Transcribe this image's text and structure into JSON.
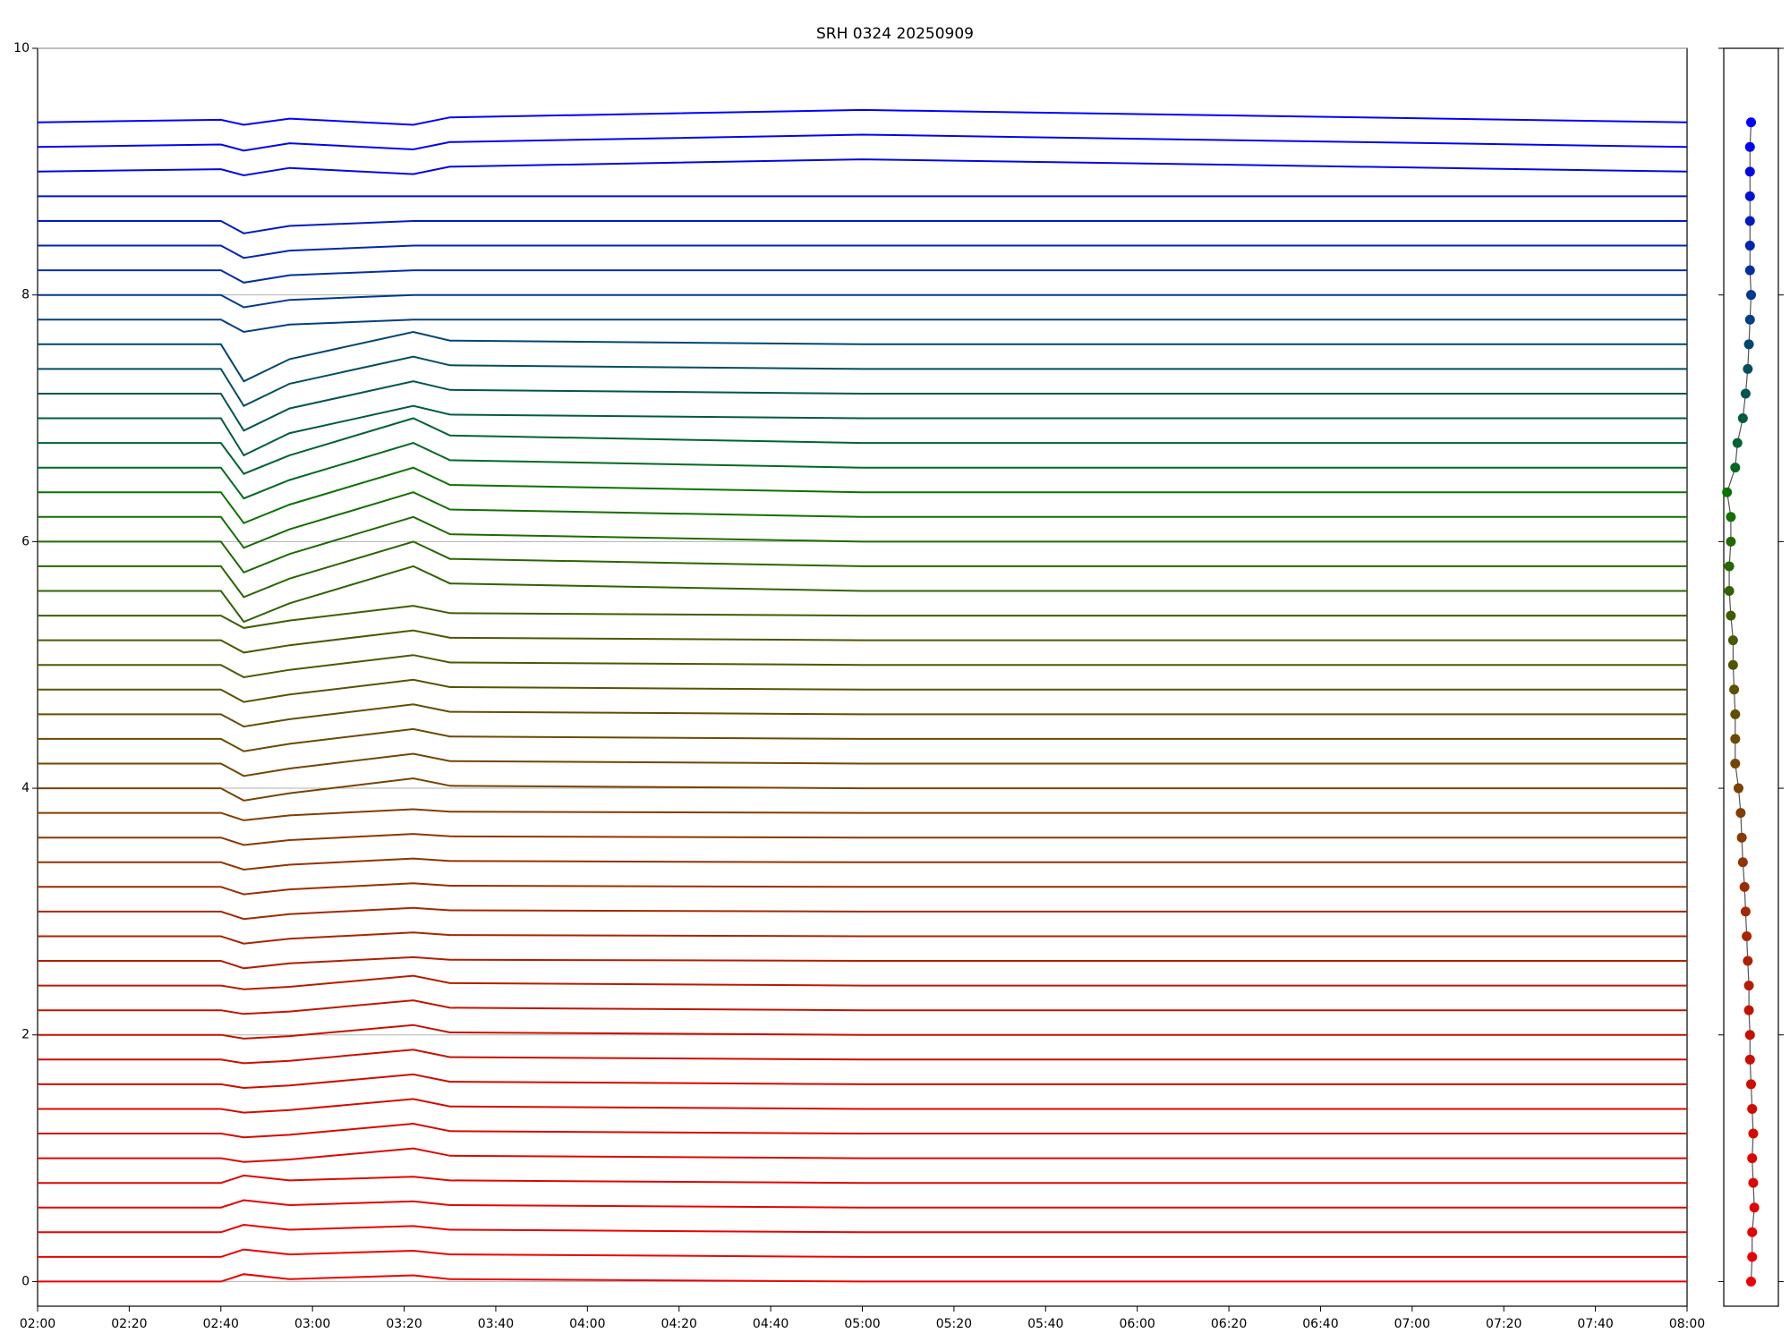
{
  "chart_data": [
    {
      "type": "line",
      "title": "SRH 0324 20250909",
      "x": [
        "02:00",
        "02:40",
        "02:45",
        "02:55",
        "03:22",
        "03:30",
        "05:00",
        "08:00"
      ],
      "xlim": [
        "02:00",
        "08:00"
      ],
      "xticks": [
        "02:00",
        "02:20",
        "02:40",
        "03:00",
        "03:20",
        "03:40",
        "04:00",
        "04:20",
        "04:40",
        "05:00",
        "05:20",
        "05:40",
        "06:00",
        "06:20",
        "06:40",
        "07:00",
        "07:20",
        "07:40",
        "08:00"
      ],
      "ylim": [
        -0.2,
        10
      ],
      "yticks": [
        0,
        2,
        4,
        6,
        8,
        10
      ],
      "grid": true,
      "series": [
        {
          "color": "#ee0000",
          "values": [
            0,
            0,
            0.06,
            0.02,
            0.05,
            0.02,
            0,
            0
          ]
        },
        {
          "color": "#ea0200",
          "values": [
            0.2,
            0.2,
            0.26,
            0.22,
            0.25,
            0.22,
            0.2,
            0.2
          ]
        },
        {
          "color": "#e60300",
          "values": [
            0.4,
            0.4,
            0.46,
            0.42,
            0.45,
            0.42,
            0.4,
            0.4
          ]
        },
        {
          "color": "#e20500",
          "values": [
            0.6,
            0.6,
            0.66,
            0.62,
            0.65,
            0.62,
            0.6,
            0.6
          ]
        },
        {
          "color": "#de0600",
          "values": [
            0.8,
            0.8,
            0.86,
            0.82,
            0.85,
            0.82,
            0.8,
            0.8
          ]
        },
        {
          "color": "#da0800",
          "values": [
            1,
            1,
            0.97,
            0.99,
            1.08,
            1.02,
            1,
            1
          ]
        },
        {
          "color": "#d60900",
          "values": [
            1.2,
            1.2,
            1.17,
            1.19,
            1.28,
            1.22,
            1.2,
            1.2
          ]
        },
        {
          "color": "#d20b00",
          "values": [
            1.4,
            1.4,
            1.37,
            1.39,
            1.48,
            1.42,
            1.4,
            1.4
          ]
        },
        {
          "color": "#ce0c00",
          "values": [
            1.6,
            1.6,
            1.57,
            1.59,
            1.68,
            1.62,
            1.6,
            1.6
          ]
        },
        {
          "color": "#ca0e00",
          "values": [
            1.8,
            1.8,
            1.77,
            1.79,
            1.88,
            1.82,
            1.8,
            1.8
          ]
        },
        {
          "color": "#c61000",
          "values": [
            2,
            2,
            1.97,
            1.99,
            2.08,
            2.02,
            2,
            2
          ]
        },
        {
          "color": "#bf1500",
          "values": [
            2.2,
            2.2,
            2.17,
            2.19,
            2.28,
            2.22,
            2.2,
            2.2
          ]
        },
        {
          "color": "#b81a00",
          "values": [
            2.4,
            2.4,
            2.37,
            2.39,
            2.48,
            2.42,
            2.4,
            2.4
          ]
        },
        {
          "color": "#b01f00",
          "values": [
            2.6,
            2.6,
            2.54,
            2.58,
            2.63,
            2.61,
            2.6,
            2.6
          ]
        },
        {
          "color": "#a92400",
          "values": [
            2.8,
            2.8,
            2.74,
            2.78,
            2.83,
            2.81,
            2.8,
            2.8
          ]
        },
        {
          "color": "#a22900",
          "values": [
            3,
            3,
            2.94,
            2.98,
            3.03,
            3.01,
            3,
            3
          ]
        },
        {
          "color": "#9a2e00",
          "values": [
            3.2,
            3.2,
            3.14,
            3.18,
            3.23,
            3.21,
            3.2,
            3.2
          ]
        },
        {
          "color": "#923300",
          "values": [
            3.4,
            3.4,
            3.34,
            3.38,
            3.43,
            3.41,
            3.4,
            3.4
          ]
        },
        {
          "color": "#8a3800",
          "values": [
            3.6,
            3.6,
            3.54,
            3.58,
            3.63,
            3.61,
            3.6,
            3.6
          ]
        },
        {
          "color": "#823d00",
          "values": [
            3.8,
            3.8,
            3.74,
            3.78,
            3.83,
            3.81,
            3.8,
            3.8
          ]
        },
        {
          "color": "#7a4200",
          "values": [
            4,
            4,
            3.9,
            3.96,
            4.08,
            4.02,
            4,
            4
          ]
        },
        {
          "color": "#724600",
          "values": [
            4.2,
            4.2,
            4.1,
            4.16,
            4.28,
            4.22,
            4.2,
            4.2
          ]
        },
        {
          "color": "#6a4a00",
          "values": [
            4.4,
            4.4,
            4.3,
            4.36,
            4.48,
            4.42,
            4.4,
            4.4
          ]
        },
        {
          "color": "#624e00",
          "values": [
            4.6,
            4.6,
            4.5,
            4.56,
            4.68,
            4.62,
            4.6,
            4.6
          ]
        },
        {
          "color": "#5a5200",
          "values": [
            4.8,
            4.8,
            4.7,
            4.76,
            4.88,
            4.82,
            4.8,
            4.8
          ]
        },
        {
          "color": "#505600",
          "values": [
            5,
            5,
            4.9,
            4.96,
            5.08,
            5.02,
            5,
            5
          ]
        },
        {
          "color": "#465a00",
          "values": [
            5.2,
            5.2,
            5.1,
            5.16,
            5.28,
            5.22,
            5.2,
            5.2
          ]
        },
        {
          "color": "#3c5e00",
          "values": [
            5.4,
            5.4,
            5.3,
            5.36,
            5.48,
            5.42,
            5.4,
            5.4
          ]
        },
        {
          "color": "#326200",
          "values": [
            5.6,
            5.6,
            5.35,
            5.5,
            5.8,
            5.66,
            5.6,
            5.6
          ]
        },
        {
          "color": "#286600",
          "values": [
            5.8,
            5.8,
            5.55,
            5.7,
            6,
            5.86,
            5.8,
            5.8
          ]
        },
        {
          "color": "#1e6a00",
          "values": [
            6,
            6,
            5.75,
            5.9,
            6.2,
            6.06,
            6,
            6
          ]
        },
        {
          "color": "#146e00",
          "values": [
            6.2,
            6.2,
            5.95,
            6.1,
            6.4,
            6.26,
            6.2,
            6.2
          ]
        },
        {
          "color": "#0a7200",
          "values": [
            6.4,
            6.4,
            6.15,
            6.3,
            6.6,
            6.46,
            6.4,
            6.4
          ]
        },
        {
          "color": "#006a20",
          "values": [
            6.6,
            6.6,
            6.35,
            6.5,
            6.8,
            6.66,
            6.6,
            6.6
          ]
        },
        {
          "color": "#006330",
          "values": [
            6.8,
            6.8,
            6.55,
            6.7,
            7,
            6.86,
            6.8,
            6.8
          ]
        },
        {
          "color": "#005c40",
          "values": [
            7,
            7,
            6.7,
            6.88,
            7.1,
            7.03,
            7,
            7
          ]
        },
        {
          "color": "#005550",
          "values": [
            7.2,
            7.2,
            6.9,
            7.08,
            7.3,
            7.23,
            7.2,
            7.2
          ]
        },
        {
          "color": "#004e60",
          "values": [
            7.4,
            7.4,
            7.1,
            7.28,
            7.5,
            7.43,
            7.4,
            7.4
          ]
        },
        {
          "color": "#004770",
          "values": [
            7.6,
            7.6,
            7.3,
            7.48,
            7.7,
            7.63,
            7.6,
            7.6
          ]
        },
        {
          "color": "#004080",
          "values": [
            7.8,
            7.8,
            7.7,
            7.76,
            7.8,
            7.8,
            7.8,
            7.8
          ]
        },
        {
          "color": "#003990",
          "values": [
            8,
            8,
            7.9,
            7.96,
            8,
            8,
            8,
            8
          ]
        },
        {
          "color": "#0030a0",
          "values": [
            8.2,
            8.2,
            8.1,
            8.16,
            8.2,
            8.2,
            8.2,
            8.2
          ]
        },
        {
          "color": "#0026b0",
          "values": [
            8.4,
            8.4,
            8.3,
            8.36,
            8.4,
            8.4,
            8.4,
            8.4
          ]
        },
        {
          "color": "#001cc0",
          "values": [
            8.6,
            8.6,
            8.5,
            8.56,
            8.6,
            8.6,
            8.6,
            8.6
          ]
        },
        {
          "color": "#0012d0",
          "values": [
            8.8,
            8.8,
            8.8,
            8.8,
            8.8,
            8.8,
            8.8,
            8.8
          ]
        },
        {
          "color": "#0008e0",
          "values": [
            9,
            9.02,
            8.97,
            9.03,
            8.98,
            9.04,
            9.1,
            9
          ]
        },
        {
          "color": "#0004f0",
          "values": [
            9.2,
            9.22,
            9.17,
            9.23,
            9.18,
            9.24,
            9.3,
            9.2
          ]
        },
        {
          "color": "#0000ff",
          "values": [
            9.4,
            9.42,
            9.38,
            9.43,
            9.38,
            9.44,
            9.5,
            9.4
          ]
        }
      ]
    },
    {
      "type": "scatter",
      "x": [
        0.5,
        0.52,
        0.52,
        0.56,
        0.54,
        0.52,
        0.54,
        0.52,
        0.5,
        0.48,
        0.48,
        0.46,
        0.46,
        0.44,
        0.42,
        0.4,
        0.38,
        0.35,
        0.33,
        0.31,
        0.27,
        0.21,
        0.21,
        0.21,
        0.19,
        0.17,
        0.17,
        0.13,
        0.1,
        0.1,
        0.13,
        0.13,
        0.06,
        0.21,
        0.25,
        0.35,
        0.4,
        0.44,
        0.46,
        0.48,
        0.5,
        0.48,
        0.48,
        0.48,
        0.48,
        0.48,
        0.48,
        0.5
      ],
      "values": [
        0,
        0.2,
        0.4,
        0.6,
        0.8,
        1,
        1.2,
        1.4,
        1.6,
        1.8,
        2,
        2.2,
        2.4,
        2.6,
        2.8,
        3,
        3.2,
        3.4,
        3.6,
        3.8,
        4,
        4.2,
        4.4,
        4.6,
        4.8,
        5,
        5.2,
        5.4,
        5.6,
        5.8,
        6,
        6.2,
        6.4,
        6.6,
        6.8,
        7,
        7.2,
        7.4,
        7.6,
        7.8,
        8,
        8.2,
        8.4,
        8.6,
        8.8,
        9,
        9.2,
        9.4
      ],
      "xlim": [
        0,
        1
      ],
      "ylim": [
        -0.2,
        10
      ],
      "yticks": [
        0,
        2,
        4,
        6,
        8,
        10
      ]
    }
  ]
}
